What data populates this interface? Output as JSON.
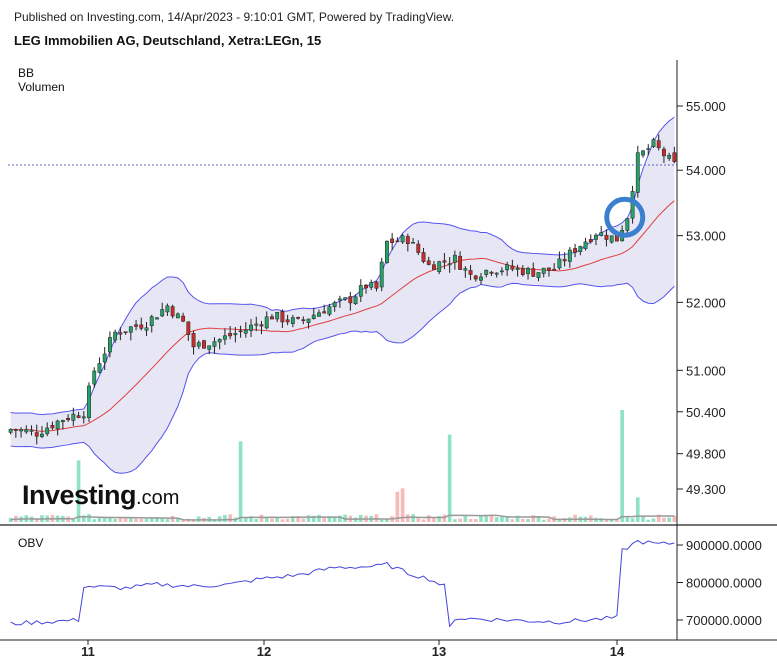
{
  "header": {
    "published": "Published on Investing.com, 14/Apr/2023 - 9:10:01 GMT, Powered by TradingView.",
    "symbol": "LEG Immobilien AG, Deutschland, Xetra:LEGn, 15"
  },
  "indicators": {
    "bb": "BB",
    "volume": "Volumen",
    "obv": "OBV"
  },
  "logo": {
    "text": "Investing",
    "suffix": ".com"
  },
  "colors": {
    "up": "#26a269",
    "down": "#c62d2d",
    "band_fill": "#e6e6f4",
    "band_line": "#5555ee",
    "basis": "#e04040",
    "vol_up": "#8fe3c4",
    "vol_down": "#f7b9b9",
    "vol_ma": "#999999",
    "obv_line": "#4444dd",
    "last_price_line": "#5566cc",
    "highlight": "#3d7fcf"
  },
  "chart_data": [
    {
      "type": "candlestick",
      "title": "LEG Immobilien AG, Deutschland, Xetra:LEGn, 15",
      "scale": "log",
      "y_ticks": [
        "55.000",
        "54.000",
        "53.000",
        "52.000",
        "51.000",
        "50.400",
        "49.800",
        "49.300"
      ],
      "x_ticks": [
        "11",
        "12",
        "13",
        "14"
      ],
      "last_price": 54.08,
      "highlight_marker": {
        "near_price": 53.28,
        "shape": "circle"
      },
      "anchors": [
        [
          0,
          50.15
        ],
        [
          5,
          50.1
        ],
        [
          10,
          50.3
        ],
        [
          14,
          50.4
        ],
        [
          16,
          51.0
        ],
        [
          20,
          51.55
        ],
        [
          26,
          51.7
        ],
        [
          30,
          51.95
        ],
        [
          33,
          51.7
        ],
        [
          35,
          51.35
        ],
        [
          40,
          51.45
        ],
        [
          45,
          51.6
        ],
        [
          50,
          51.8
        ],
        [
          55,
          51.7
        ],
        [
          60,
          51.9
        ],
        [
          65,
          52.05
        ],
        [
          68,
          52.25
        ],
        [
          70,
          52.2
        ],
        [
          72,
          52.9
        ],
        [
          76,
          52.95
        ],
        [
          80,
          52.55
        ],
        [
          85,
          52.65
        ],
        [
          88,
          52.4
        ],
        [
          92,
          52.5
        ],
        [
          96,
          52.5
        ],
        [
          100,
          52.45
        ],
        [
          104,
          52.5
        ],
        [
          108,
          52.8
        ],
        [
          112,
          53.05
        ],
        [
          116,
          52.95
        ],
        [
          118,
          53.3
        ],
        [
          120,
          54.2
        ],
        [
          123,
          54.4
        ],
        [
          127,
          54.08
        ]
      ]
    },
    {
      "type": "bar",
      "name": "Volumen",
      "spikes": [
        {
          "bar": 13,
          "value": 0.55,
          "up": true
        },
        {
          "bar": 44,
          "value": 0.72,
          "up": true
        },
        {
          "bar": 74,
          "value": 0.27,
          "up": false
        },
        {
          "bar": 75,
          "value": 0.3,
          "up": false
        },
        {
          "bar": 84,
          "value": 0.78,
          "up": true
        },
        {
          "bar": 117,
          "value": 1.0,
          "up": true
        },
        {
          "bar": 120,
          "value": 0.22,
          "up": true
        }
      ]
    },
    {
      "type": "line",
      "name": "OBV",
      "y_ticks": [
        "900000.0000",
        "800000.0000",
        "700000.0000"
      ],
      "anchors": [
        [
          0,
          690000
        ],
        [
          13,
          700000
        ],
        [
          14,
          790000
        ],
        [
          22,
          785000
        ],
        [
          28,
          795000
        ],
        [
          35,
          790000
        ],
        [
          42,
          795000
        ],
        [
          48,
          810000
        ],
        [
          55,
          820000
        ],
        [
          62,
          840000
        ],
        [
          70,
          843000
        ],
        [
          72,
          848000
        ],
        [
          76,
          825000
        ],
        [
          80,
          810000
        ],
        [
          83,
          790000
        ],
        [
          84,
          680000
        ],
        [
          85,
          705000
        ],
        [
          95,
          700000
        ],
        [
          105,
          695000
        ],
        [
          116,
          706000
        ],
        [
          117,
          885000
        ],
        [
          120,
          910000
        ],
        [
          124,
          902000
        ],
        [
          127,
          905000
        ]
      ]
    }
  ]
}
